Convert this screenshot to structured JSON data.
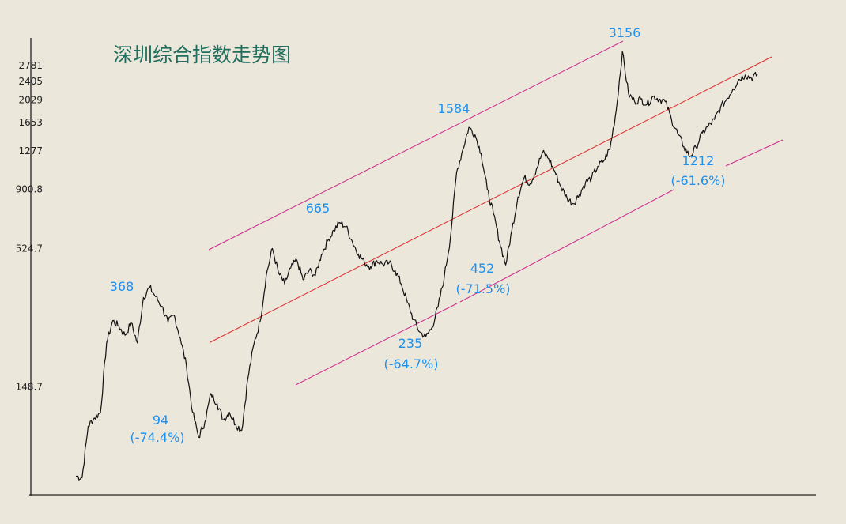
{
  "chart_data": {
    "type": "line",
    "title": "深圳综合指数走势图",
    "xlabel": "",
    "ylabel": "",
    "y_scale": "log",
    "ylim": [
      62,
      3400
    ],
    "grid": false,
    "y_ticks": [
      "2781",
      "2405",
      "2029",
      "1653",
      "1277",
      "900.8",
      "524.7",
      "148.7"
    ],
    "series": [
      {
        "values": [
          66,
          65,
          104,
          112,
          118,
          222,
          272,
          258,
          238,
          266,
          222,
          336,
          368,
          338,
          310,
          268,
          286,
          232,
          180,
          118,
          94,
          108,
          140,
          128,
          110,
          118,
          106,
          100,
          160,
          220,
          270,
          410,
          525,
          420,
          380,
          440,
          472,
          395,
          430,
          410,
          498,
          562,
          620,
          665,
          640,
          560,
          500,
          462,
          445,
          470,
          455,
          460,
          430,
          380,
          320,
          275,
          245,
          235,
          256,
          310,
          405,
          580,
          1050,
          1290,
          1584,
          1480,
          1250,
          900,
          720,
          560,
          452,
          620,
          840,
          1000,
          950,
          1080,
          1260,
          1190,
          1060,
          920,
          830,
          790,
          860,
          960,
          1000,
          1110,
          1170,
          1310,
          1850,
          3156,
          2150,
          2000,
          2050,
          1950,
          2100,
          2050,
          2000,
          1700,
          1500,
          1330,
          1212,
          1320,
          1500,
          1600,
          1700,
          1900,
          2050,
          2250,
          2450,
          2550,
          2480,
          2560
        ]
      }
    ],
    "annotations": [
      {
        "value": "368",
        "text": "368"
      },
      {
        "value": "94",
        "text": "94"
      },
      {
        "value": "94",
        "text": "(-74.4%)"
      },
      {
        "value": "665",
        "text": "665"
      },
      {
        "value": "235",
        "text": "235"
      },
      {
        "value": "235",
        "text": "(-64.7%)"
      },
      {
        "value": "1584",
        "text": "1584"
      },
      {
        "value": "452",
        "text": "452"
      },
      {
        "value": "452",
        "text": "(-71.5%)"
      },
      {
        "value": "3156",
        "text": "3156"
      },
      {
        "value": "1212",
        "text": "1212"
      },
      {
        "value": "1212",
        "text": "(-61.6%)"
      }
    ],
    "trend_lines": [
      {
        "name": "upper",
        "color": "#cc2a8c"
      },
      {
        "name": "middle",
        "color": "#dd2c2c"
      },
      {
        "name": "lower",
        "color": "#cc2a8c"
      }
    ]
  },
  "colors": {
    "background": "#ece7db",
    "price_line": "#111111",
    "title": "#1f6e5e",
    "annotation": "#1e90ee"
  }
}
